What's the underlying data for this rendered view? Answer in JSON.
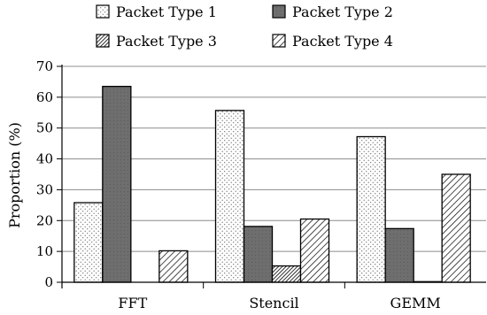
{
  "chart_data": {
    "type": "bar",
    "title": "",
    "xlabel": "",
    "ylabel": "Proportion (%)",
    "ylim": [
      0,
      70
    ],
    "yticks": [
      0,
      10,
      20,
      30,
      40,
      50,
      60,
      70
    ],
    "grid": "horizontal",
    "legend_position": "top",
    "categories": [
      "FFT",
      "Stencil",
      "GEMM"
    ],
    "series": [
      {
        "name": "Packet Type 1",
        "pattern": "dots",
        "values": [
          25.8,
          55.7,
          47.2
        ]
      },
      {
        "name": "Packet Type 2",
        "pattern": "dark-gray",
        "values": [
          63.5,
          18.1,
          17.4
        ]
      },
      {
        "name": "Packet Type 3",
        "pattern": "dense-hatch",
        "values": [
          0,
          5.3,
          0.2
        ]
      },
      {
        "name": "Packet Type 4",
        "pattern": "sparse-hatch",
        "values": [
          10.2,
          20.5,
          35.0
        ]
      }
    ]
  }
}
